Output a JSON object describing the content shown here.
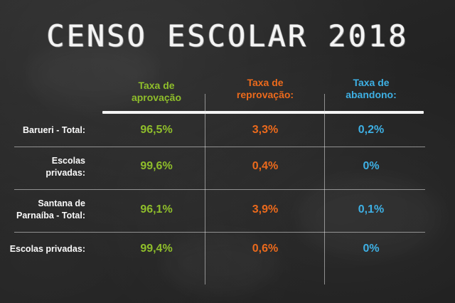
{
  "title": "CENSO ESCOLAR 2018",
  "colors": {
    "approval": "#8fbe2b",
    "failure": "#ec6a1c",
    "dropout": "#3eb0e4",
    "label": "#fafafa"
  },
  "chart_data": {
    "type": "table",
    "columns": [
      {
        "line1": "Taxa de",
        "line2": "aprovação"
      },
      {
        "line1": "Taxa de",
        "line2": "reprovação:"
      },
      {
        "line1": "Taxa de",
        "line2": "abandono:"
      }
    ],
    "rows": [
      {
        "label1": "Barueri - Total:",
        "label2": "",
        "values": [
          "96,5%",
          "3,3%",
          "0,2%"
        ]
      },
      {
        "label1": "Escolas",
        "label2": "privadas:",
        "values": [
          "99,6%",
          "0,4%",
          "0%"
        ]
      },
      {
        "label1": "Santana de",
        "label2": "Parnaíba - Total:",
        "values": [
          "96,1%",
          "3,9%",
          "0,1%"
        ]
      },
      {
        "label1": "Escolas privadas:",
        "label2": "",
        "values": [
          "99,4%",
          "0,6%",
          "0%"
        ]
      }
    ]
  }
}
